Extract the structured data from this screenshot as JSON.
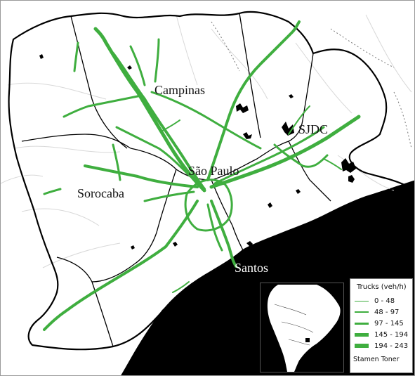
{
  "cities": [
    {
      "id": "campinas",
      "name": "Campinas"
    },
    {
      "id": "sjdc",
      "name": "SJDC"
    },
    {
      "id": "sao-paulo",
      "name": "São Paulo"
    },
    {
      "id": "sorocaba",
      "name": "Sorocaba"
    },
    {
      "id": "santos",
      "name": "Santos"
    }
  ],
  "legend": {
    "title": "Trucks (veh/h)",
    "items": [
      {
        "label": "0 - 48"
      },
      {
        "label": "48 - 97"
      },
      {
        "label": "97 - 145"
      },
      {
        "label": "145 - 194"
      },
      {
        "label": "194 - 243"
      }
    ],
    "credit": "Stamen Toner"
  },
  "colors": {
    "road": "#3fae3f",
    "ocean": "#000000",
    "land": "#ffffff",
    "boundary": "#000000",
    "minor_road": "#d8d8d8"
  }
}
